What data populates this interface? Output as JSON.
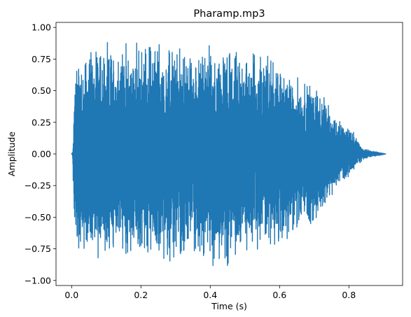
{
  "chart_data": {
    "type": "line",
    "title": "Pharamp.mp3",
    "xlabel": "Time (s)",
    "ylabel": "Amplitude",
    "xlim": [
      -0.045,
      0.955
    ],
    "ylim": [
      -1.04,
      1.04
    ],
    "xticks": [
      0.0,
      0.2,
      0.4,
      0.6,
      0.8
    ],
    "xtick_labels": [
      "0.0",
      "0.2",
      "0.4",
      "0.6",
      "0.8"
    ],
    "yticks": [
      -1.0,
      -0.75,
      -0.5,
      -0.25,
      0.0,
      0.25,
      0.5,
      0.75,
      1.0
    ],
    "ytick_labels": [
      "−1.00",
      "−0.75",
      "−0.50",
      "−0.25",
      "0.00",
      "0.25",
      "0.50",
      "0.75",
      "1.00"
    ],
    "grid": false,
    "line_color": "#1f77b4",
    "series": [
      {
        "x": [
          0.0,
          0.003,
          0.006,
          0.008,
          0.01,
          0.02,
          0.03,
          0.05,
          0.08,
          0.1,
          0.15,
          0.2,
          0.25,
          0.3,
          0.35,
          0.4,
          0.45,
          0.5,
          0.55,
          0.6,
          0.65,
          0.7,
          0.75,
          0.78,
          0.8,
          0.82,
          0.84,
          0.86,
          0.88,
          0.907
        ],
        "y_max": [
          0.0,
          0.02,
          0.27,
          0.55,
          0.8,
          0.88,
          0.82,
          0.88,
          0.96,
          0.9,
          0.9,
          0.92,
          0.95,
          0.9,
          0.84,
          0.9,
          0.85,
          0.84,
          0.88,
          0.75,
          0.63,
          0.6,
          0.35,
          0.26,
          0.25,
          0.15,
          0.05,
          0.03,
          0.02,
          0.0
        ],
        "y_min": [
          0.0,
          -0.02,
          -0.44,
          -0.83,
          -0.84,
          -0.85,
          -0.78,
          -0.85,
          -0.88,
          -0.8,
          -0.88,
          -0.84,
          -0.88,
          -0.9,
          -0.83,
          -0.9,
          -0.92,
          -0.86,
          -0.8,
          -0.75,
          -0.65,
          -0.6,
          -0.4,
          -0.25,
          -0.19,
          -0.11,
          -0.05,
          -0.03,
          -0.02,
          0.0
        ]
      }
    ]
  }
}
